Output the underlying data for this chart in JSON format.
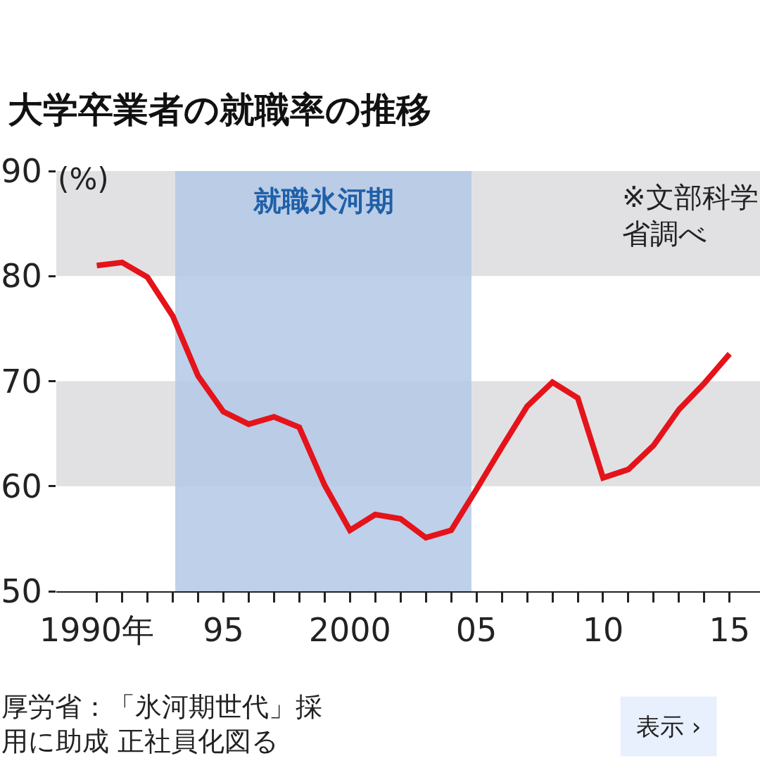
{
  "chart_data": {
    "type": "line",
    "title": "大学卒業者の就職率の推移",
    "ylabel": "(%)",
    "x": [
      1990,
      1991,
      1992,
      1993,
      1994,
      1995,
      1996,
      1997,
      1998,
      1999,
      2000,
      2001,
      2002,
      2003,
      2004,
      2005,
      2006,
      2007,
      2008,
      2009,
      2010,
      2011,
      2012,
      2013,
      2014,
      2015
    ],
    "series": [
      {
        "color": "#e5131a",
        "values": [
          81.0,
          81.3,
          79.9,
          76.2,
          70.5,
          67.1,
          65.9,
          66.6,
          65.6,
          60.1,
          55.8,
          57.3,
          56.9,
          55.1,
          55.8,
          59.7,
          63.7,
          67.6,
          69.9,
          68.4,
          60.8,
          61.6,
          63.9,
          67.3,
          69.8,
          72.6
        ]
      }
    ],
    "xlim": [
      1988.4,
      2016.2
    ],
    "ylim": [
      50,
      90
    ],
    "xticks": [
      {
        "value": 1990,
        "label": "1990年"
      },
      {
        "value": 1991,
        "label": null
      },
      {
        "value": 1992,
        "label": null
      },
      {
        "value": 1993,
        "label": null
      },
      {
        "value": 1994,
        "label": null
      },
      {
        "value": 1995,
        "label": "95"
      },
      {
        "value": 1996,
        "label": null
      },
      {
        "value": 1997,
        "label": null
      },
      {
        "value": 1998,
        "label": null
      },
      {
        "value": 1999,
        "label": null
      },
      {
        "value": 2000,
        "label": "2000"
      },
      {
        "value": 2001,
        "label": null
      },
      {
        "value": 2002,
        "label": null
      },
      {
        "value": 2003,
        "label": null
      },
      {
        "value": 2004,
        "label": null
      },
      {
        "value": 2005,
        "label": "05"
      },
      {
        "value": 2006,
        "label": null
      },
      {
        "value": 2007,
        "label": null
      },
      {
        "value": 2008,
        "label": null
      },
      {
        "value": 2009,
        "label": null
      },
      {
        "value": 2010,
        "label": "10"
      },
      {
        "value": 2011,
        "label": null
      },
      {
        "value": 2012,
        "label": null
      },
      {
        "value": 2013,
        "label": null
      },
      {
        "value": 2014,
        "label": null
      },
      {
        "value": 2015,
        "label": "15"
      }
    ],
    "yticks": [
      50,
      60,
      70,
      80,
      90
    ],
    "bands": [
      {
        "axis": "y",
        "from": 80,
        "to": 90,
        "color": "#e1e1e4"
      },
      {
        "axis": "y",
        "from": 60,
        "to": 70,
        "color": "#e1e1e4"
      },
      {
        "axis": "x",
        "from": 1993.1,
        "to": 2004.8,
        "color": "#b3c8e6",
        "label": "就職氷河期"
      }
    ],
    "annotations": [
      "※文部科学省調べ",
      "厚労省：「氷河期世代」採用に助成 正社員化図る",
      "表示 ›"
    ],
    "grid": false,
    "marker": "none",
    "line_style": "solid"
  }
}
